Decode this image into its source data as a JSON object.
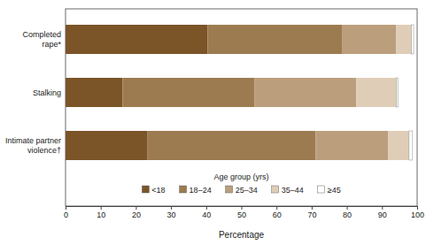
{
  "chart_data": {
    "type": "bar",
    "orientation": "horizontal",
    "stacked": true,
    "categories": [
      "Completed rape*",
      "Stalking",
      "Intimate partner violence†"
    ],
    "series": [
      {
        "name": "<18",
        "color": "#7b5428",
        "values": [
          40.4,
          16.2,
          23.2
        ]
      },
      {
        "name": "18–24",
        "color": "#9d7b50",
        "values": [
          38.2,
          37.6,
          47.9
        ]
      },
      {
        "name": "25–34",
        "color": "#bb9f7d",
        "values": [
          15.4,
          28.9,
          20.7
        ]
      },
      {
        "name": "35–44",
        "color": "#dfcdb7",
        "values": [
          4.4,
          11.4,
          5.9
        ]
      },
      {
        "name": "≥45",
        "color": "#ffffff",
        "values": [
          0.6,
          0.4,
          1.0
        ]
      }
    ],
    "xlabel": "Percentage",
    "legend_title": "Age group (yrs)",
    "legend": "bottom",
    "xlim": [
      0,
      100
    ],
    "xticks": [
      0,
      10,
      20,
      30,
      40,
      50,
      60,
      70,
      80,
      90,
      100
    ],
    "grid": false
  }
}
